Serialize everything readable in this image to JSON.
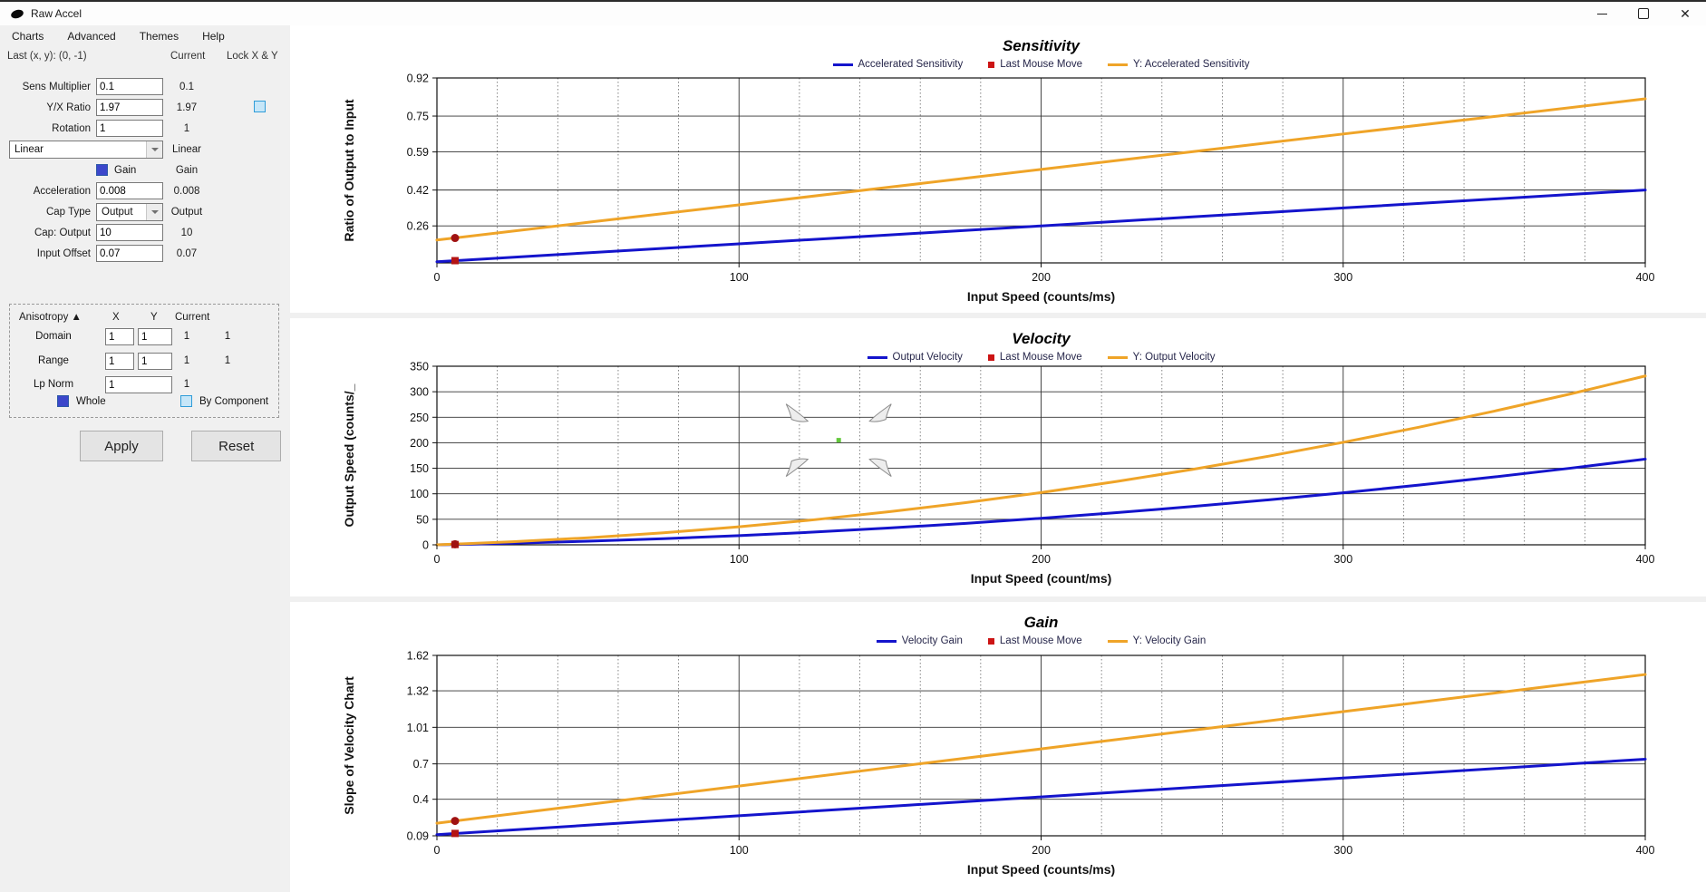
{
  "window": {
    "title": "Raw Accel",
    "controls": [
      "minimize-icon",
      "maximize-icon",
      "close-icon"
    ]
  },
  "menu": {
    "items": [
      "Charts",
      "Advanced",
      "Themes",
      "Help"
    ]
  },
  "sidebar": {
    "last_xy": "Last (x, y): (0, -1)",
    "columns": {
      "current": "Current",
      "lock": "Lock X & Y"
    },
    "sens_multiplier": {
      "label": "Sens Multiplier",
      "value": "0.1",
      "current": "0.1"
    },
    "yx_ratio": {
      "label": "Y/X Ratio",
      "value": "1.97",
      "current": "1.97",
      "lock_checked": false
    },
    "rotation": {
      "label": "Rotation",
      "value": "1",
      "current": "1"
    },
    "curve_type": {
      "value": "Linear",
      "current": "Linear"
    },
    "gain": {
      "label": "Gain",
      "current": "Gain",
      "checked": true
    },
    "acceleration": {
      "label": "Acceleration",
      "value": "0.008",
      "current": "0.008"
    },
    "cap_type": {
      "label": "Cap Type",
      "value": "Output",
      "current": "Output"
    },
    "cap_output": {
      "label": "Cap: Output",
      "value": "10",
      "current": "10"
    },
    "input_offset": {
      "label": "Input Offset",
      "value": "0.07",
      "current": "0.07"
    },
    "anisotropy": {
      "header": "Anisotropy ▲",
      "col_x": "X",
      "col_y": "Y",
      "col_current": "Current",
      "domain": {
        "label": "Domain",
        "x": "1",
        "y": "1",
        "current_x": "1",
        "current_y": "1"
      },
      "range": {
        "label": "Range",
        "x": "1",
        "y": "1",
        "current_x": "1",
        "current_y": "1"
      },
      "lp_norm": {
        "label": "Lp Norm",
        "value": "1",
        "current": "1"
      },
      "whole_label": "Whole",
      "whole_checked": true,
      "by_component_label": "By Component",
      "by_component_checked": false
    },
    "apply_label": "Apply",
    "reset_label": "Reset"
  },
  "colors": {
    "accent_blue": "#1414cc",
    "accent_orange": "#efa428",
    "marker_red": "#b41414",
    "checkbox_checked": "#3c47cb",
    "checkbox_unchecked": "#c6e6f8"
  },
  "chart_data": [
    {
      "type": "line",
      "title": "Sensitivity",
      "xlabel": "Input Speed (counts/ms)",
      "ylabel": "Ratio of Output to Input",
      "xlim": [
        0,
        400
      ],
      "ylim": [
        0.095,
        0.92
      ],
      "x_ticks": [
        0,
        100,
        200,
        300,
        400
      ],
      "x_tick_labels": [
        "0",
        "100",
        "200",
        "300",
        "400"
      ],
      "y_ticks": [
        0.26,
        0.42,
        0.59,
        0.75,
        0.92
      ],
      "y_tick_labels": [
        "0.26",
        "0.42",
        "0.59",
        "0.75",
        "0.92"
      ],
      "x_minor_step": 20,
      "grid": true,
      "legend_position": "top-center",
      "legend": [
        {
          "label": "Accelerated Sensitivity",
          "swatch": "line",
          "color": "#1414cc"
        },
        {
          "label": "Last Mouse Move",
          "swatch": "square",
          "color": "#cc1414"
        },
        {
          "label": "Y: Accelerated Sensitivity",
          "swatch": "line",
          "color": "#efa428"
        }
      ],
      "series": [
        {
          "name": "Accelerated Sensitivity",
          "color": "#1414cc",
          "x": [
            0,
            50,
            100,
            150,
            200,
            250,
            300,
            350,
            400
          ],
          "y": [
            0.1,
            0.14,
            0.18,
            0.22,
            0.26,
            0.3,
            0.34,
            0.38,
            0.42
          ]
        },
        {
          "name": "Y: Accelerated Sensitivity",
          "color": "#efa428",
          "x": [
            0,
            50,
            100,
            150,
            200,
            250,
            300,
            350,
            400
          ],
          "y": [
            0.197,
            0.276,
            0.354,
            0.433,
            0.512,
            0.591,
            0.67,
            0.748,
            0.827
          ]
        }
      ],
      "markers": [
        {
          "name": "Last Mouse Move (X)",
          "shape": "square",
          "color": "#b41414",
          "x": 6,
          "y": 0.105
        },
        {
          "name": "Last Mouse Move (Y)",
          "shape": "circle",
          "color": "#a01212",
          "x": 6,
          "y": 0.206
        }
      ]
    },
    {
      "type": "line",
      "title": "Velocity",
      "xlabel": "Input Speed (count/ms)",
      "ylabel": "Output Speed (counts/_",
      "xlim": [
        0,
        400
      ],
      "ylim": [
        0,
        350
      ],
      "x_ticks": [
        0,
        100,
        200,
        300,
        400
      ],
      "x_tick_labels": [
        "0",
        "100",
        "200",
        "300",
        "400"
      ],
      "y_ticks": [
        0,
        50,
        100,
        150,
        200,
        250,
        300,
        350
      ],
      "y_tick_labels": [
        "0",
        "50",
        "100",
        "150",
        "200",
        "250",
        "300",
        "350"
      ],
      "x_minor_step": 20,
      "grid": true,
      "legend_position": "top-center",
      "legend": [
        {
          "label": "Output Velocity",
          "swatch": "line",
          "color": "#1414cc"
        },
        {
          "label": "Last Mouse Move",
          "swatch": "square",
          "color": "#cc1414"
        },
        {
          "label": "Y: Output Velocity",
          "swatch": "line",
          "color": "#efa428"
        }
      ],
      "series": [
        {
          "name": "Output Velocity",
          "color": "#1414cc",
          "x": [
            0,
            25,
            50,
            75,
            100,
            125,
            150,
            175,
            200,
            225,
            250,
            275,
            300,
            325,
            350,
            375,
            400
          ],
          "y": [
            0,
            3,
            7,
            12,
            18,
            25,
            33,
            42,
            52,
            63,
            75,
            88,
            102,
            117,
            133,
            150,
            168
          ]
        },
        {
          "name": "Y: Output Velocity",
          "color": "#efa428",
          "x": [
            0,
            25,
            50,
            75,
            100,
            125,
            150,
            175,
            200,
            225,
            250,
            275,
            300,
            325,
            350,
            375,
            400
          ],
          "y": [
            0,
            5.9,
            13.8,
            23.6,
            35.4,
            49.2,
            65.0,
            82.7,
            102.4,
            124.1,
            147.7,
            173.3,
            200.9,
            230.4,
            262.0,
            295.4,
            330.9
          ]
        }
      ],
      "markers": [
        {
          "name": "Last Mouse Move (X)",
          "shape": "square",
          "color": "#b41414",
          "x": 6,
          "y": 0.6
        },
        {
          "name": "Last Mouse Move (Y)",
          "shape": "circle",
          "color": "#a01212",
          "x": 6,
          "y": 1.2
        }
      ],
      "overlay": {
        "name": "pan-cursor",
        "x": 133,
        "y": 205,
        "arrow_color": "#8c8c8c",
        "center_color": "#63c83c"
      }
    },
    {
      "type": "line",
      "title": "Gain",
      "xlabel": "Input Speed (counts/ms)",
      "ylabel": "Slope of Velocity Chart",
      "xlim": [
        0,
        400
      ],
      "ylim": [
        0.09,
        1.62
      ],
      "x_ticks": [
        0,
        100,
        200,
        300,
        400
      ],
      "x_tick_labels": [
        "0",
        "100",
        "200",
        "300",
        "400"
      ],
      "y_ticks": [
        0.09,
        0.4,
        0.7,
        1.01,
        1.32,
        1.62
      ],
      "y_tick_labels": [
        "0.09",
        "0.4",
        "0.7",
        "1.01",
        "1.32",
        "1.62"
      ],
      "x_minor_step": 20,
      "grid": true,
      "legend_position": "top-center",
      "legend": [
        {
          "label": "Velocity Gain",
          "swatch": "line",
          "color": "#1414cc"
        },
        {
          "label": "Last Mouse Move",
          "swatch": "square",
          "color": "#cc1414"
        },
        {
          "label": "Y: Velocity Gain",
          "swatch": "line",
          "color": "#efa428"
        }
      ],
      "series": [
        {
          "name": "Velocity Gain",
          "color": "#1414cc",
          "x": [
            0,
            50,
            100,
            150,
            200,
            250,
            300,
            350,
            400
          ],
          "y": [
            0.1,
            0.18,
            0.26,
            0.34,
            0.42,
            0.5,
            0.58,
            0.66,
            0.74
          ]
        },
        {
          "name": "Y: Velocity Gain",
          "color": "#efa428",
          "x": [
            0,
            50,
            100,
            150,
            200,
            250,
            300,
            350,
            400
          ],
          "y": [
            0.197,
            0.355,
            0.512,
            0.67,
            0.827,
            0.985,
            1.143,
            1.3,
            1.458
          ]
        }
      ],
      "markers": [
        {
          "name": "Last Mouse Move (X)",
          "shape": "square",
          "color": "#b41414",
          "x": 6,
          "y": 0.11
        },
        {
          "name": "Last Mouse Move (Y)",
          "shape": "circle",
          "color": "#a01212",
          "x": 6,
          "y": 0.216
        }
      ]
    }
  ]
}
